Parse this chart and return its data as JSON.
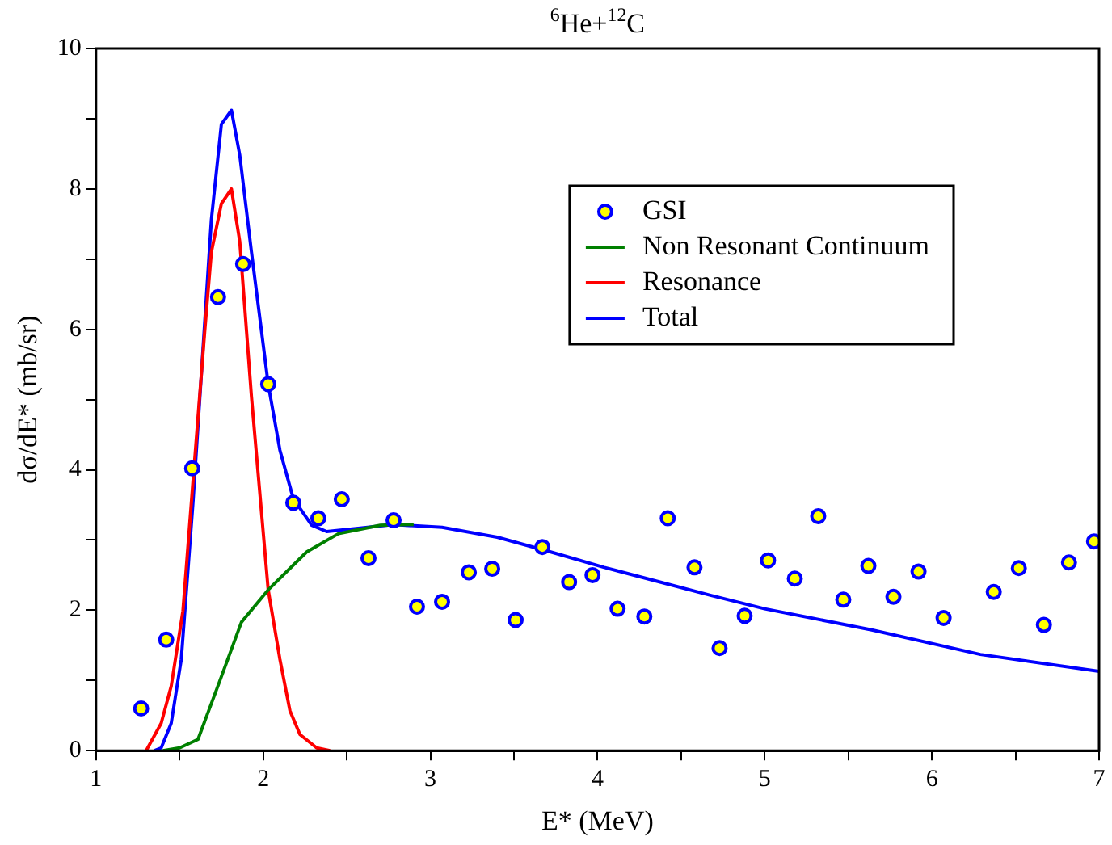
{
  "chart_data": {
    "type": "line",
    "title": "$^{6}$He+$^{12}$C",
    "xlabel": "E* (MeV)",
    "ylabel": "dσ/dE* (mb/sr)",
    "xlim": [
      1,
      7
    ],
    "xticks": [
      1,
      {
        "value": 1.5,
        "label": null
      },
      2,
      {
        "value": 2.5,
        "label": null
      },
      3,
      {
        "value": 3.5,
        "label": null
      },
      4,
      {
        "value": 4.5,
        "label": null
      },
      5,
      {
        "value": 5.5,
        "label": null
      },
      6,
      {
        "value": 6.5,
        "label": null
      },
      7
    ],
    "ylim": [
      0,
      10
    ],
    "yticks": [
      0,
      {
        "value": 1,
        "label": null
      },
      2,
      {
        "value": 3,
        "label": null
      },
      4,
      {
        "value": 5,
        "label": null
      },
      6,
      {
        "value": 7,
        "label": null
      },
      8,
      {
        "value": 9,
        "label": null
      },
      10
    ],
    "grid": false,
    "legend": "top right",
    "line_style": "solid",
    "series": [
      {
        "name": "GSI",
        "type": "scatter",
        "marker": "circle",
        "color": "#0000ff",
        "x": [
          1.27,
          1.42,
          1.575,
          1.73,
          1.88,
          2.03,
          2.18,
          2.33,
          2.47,
          2.63,
          2.78,
          2.92,
          3.07,
          3.23,
          3.37,
          3.51,
          3.67,
          3.83,
          3.97,
          4.12,
          4.28,
          4.42,
          4.58,
          4.73,
          4.88,
          5.02,
          5.18,
          5.32,
          5.47,
          5.62,
          5.77,
          5.92,
          6.07,
          6.37,
          6.52,
          6.67,
          6.82,
          6.97
        ],
        "values": [
          0.6,
          1.58,
          4.02,
          6.46,
          6.93,
          5.22,
          3.53,
          3.31,
          3.58,
          2.74,
          3.28,
          2.05,
          2.12,
          2.54,
          2.59,
          1.86,
          2.9,
          2.4,
          2.5,
          2.02,
          1.91,
          3.31,
          2.61,
          1.46,
          1.92,
          2.71,
          2.45,
          3.34,
          2.15,
          2.63,
          2.19,
          2.55,
          1.89,
          2.26,
          2.6,
          1.79,
          2.68,
          2.98
        ]
      },
      {
        "name": "Non Resonant Continuum",
        "color": "#008000",
        "x": [
          1.4,
          1.5,
          1.61,
          1.74,
          1.87,
          2.03,
          2.26,
          2.45,
          2.7,
          2.9
        ],
        "values": [
          0,
          0.04,
          0.16,
          0.99,
          1.83,
          2.29,
          2.83,
          3.09,
          3.21,
          3.22
        ]
      },
      {
        "name": "Resonance",
        "color": "#ff0000",
        "x": [
          1.3,
          1.39,
          1.45,
          1.52,
          1.58,
          1.65,
          1.69,
          1.75,
          1.81,
          1.86,
          1.93,
          2.03,
          2.1,
          2.16,
          2.22,
          2.32,
          2.4
        ],
        "values": [
          0,
          0.39,
          0.92,
          1.99,
          3.83,
          5.96,
          7.1,
          7.79,
          8.0,
          7.25,
          5.04,
          2.29,
          1.3,
          0.57,
          0.23,
          0.04,
          0
        ]
      },
      {
        "name": "Total",
        "color": "#0000ff",
        "x": [
          1.35,
          1.39,
          1.45,
          1.51,
          1.58,
          1.63,
          1.69,
          1.75,
          1.81,
          1.86,
          1.93,
          2.03,
          2.1,
          2.18,
          2.29,
          2.38,
          2.58,
          2.78,
          3.07,
          3.4,
          3.72,
          4.04,
          4.36,
          4.68,
          5.0,
          5.64,
          6.29,
          7.0
        ],
        "values": [
          0,
          0.04,
          0.39,
          1.3,
          3.53,
          5.35,
          7.56,
          8.92,
          9.12,
          8.48,
          7.1,
          5.22,
          4.28,
          3.59,
          3.21,
          3.12,
          3.17,
          3.22,
          3.18,
          3.04,
          2.83,
          2.61,
          2.41,
          2.21,
          2.02,
          1.72,
          1.37,
          1.13
        ]
      }
    ]
  }
}
